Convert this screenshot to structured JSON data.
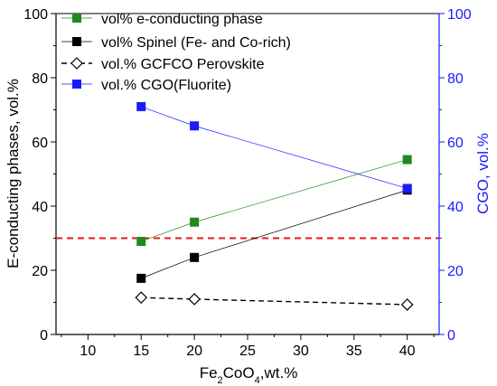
{
  "chart_data": {
    "type": "line",
    "x": [
      15,
      20,
      40
    ],
    "xlabel": {
      "base": "Fe",
      "sub1": "2",
      "mid": "CoO",
      "sub2": "4",
      "tail": ",wt.%"
    },
    "ylabel_left": "E-conducting phases, vol.%",
    "ylabel_right": "CGO, vol.%",
    "xlim": [
      7,
      43
    ],
    "ylim_left": [
      0,
      100
    ],
    "ylim_right": [
      0,
      100
    ],
    "x_ticks": [
      10,
      15,
      20,
      25,
      30,
      35,
      40
    ],
    "y_ticks_left": [
      0,
      20,
      40,
      60,
      80,
      100
    ],
    "y_ticks_right": [
      0,
      20,
      40,
      60,
      80,
      100
    ],
    "legend_position": "top-left",
    "reference_line": {
      "y": 30,
      "color": "#e31a1c",
      "style": "dashed"
    },
    "series": [
      {
        "name": "vol% e-conducting phase",
        "values": [
          29,
          35,
          54.5
        ],
        "axis": "left",
        "color": "#1e8a1e",
        "marker": "square-filled",
        "line_style": "solid"
      },
      {
        "name": "vol% Spinel (Fe- and Co-rich)",
        "values": [
          17.5,
          24,
          45
        ],
        "axis": "left",
        "color": "#000000",
        "marker": "square-filled",
        "line_style": "solid"
      },
      {
        "name": "vol.% GCFCO Perovskite",
        "values": [
          11.5,
          11,
          9.3
        ],
        "axis": "left",
        "color": "#000000",
        "marker": "diamond-open",
        "line_style": "dashed"
      },
      {
        "name": "vol.% CGO(Fluorite)",
        "values": [
          71,
          65,
          45.5
        ],
        "axis": "right",
        "color": "#1a1aff",
        "marker": "square-filled",
        "line_style": "solid"
      }
    ]
  },
  "colors": {
    "left_axis": "#000000",
    "right_axis": "#1a1aff"
  }
}
